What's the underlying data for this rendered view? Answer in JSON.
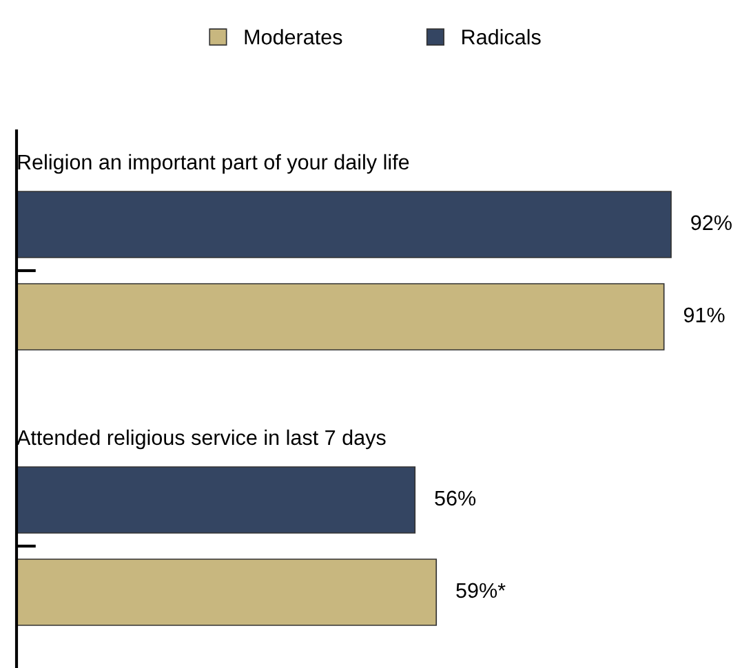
{
  "chart_data": {
    "type": "bar",
    "orientation": "horizontal",
    "categories": [
      "Religion an important part of your daily life",
      "Attended religious service in last 7 days"
    ],
    "series": [
      {
        "name": "Moderates",
        "color": "#c8b77f",
        "values": [
          91,
          59
        ],
        "value_labels": [
          "91%",
          "59%*"
        ]
      },
      {
        "name": "Radicals",
        "color": "#344562",
        "values": [
          92,
          56
        ],
        "value_labels": [
          "92%",
          "56%"
        ]
      }
    ],
    "legend": "top",
    "grid": false
  }
}
